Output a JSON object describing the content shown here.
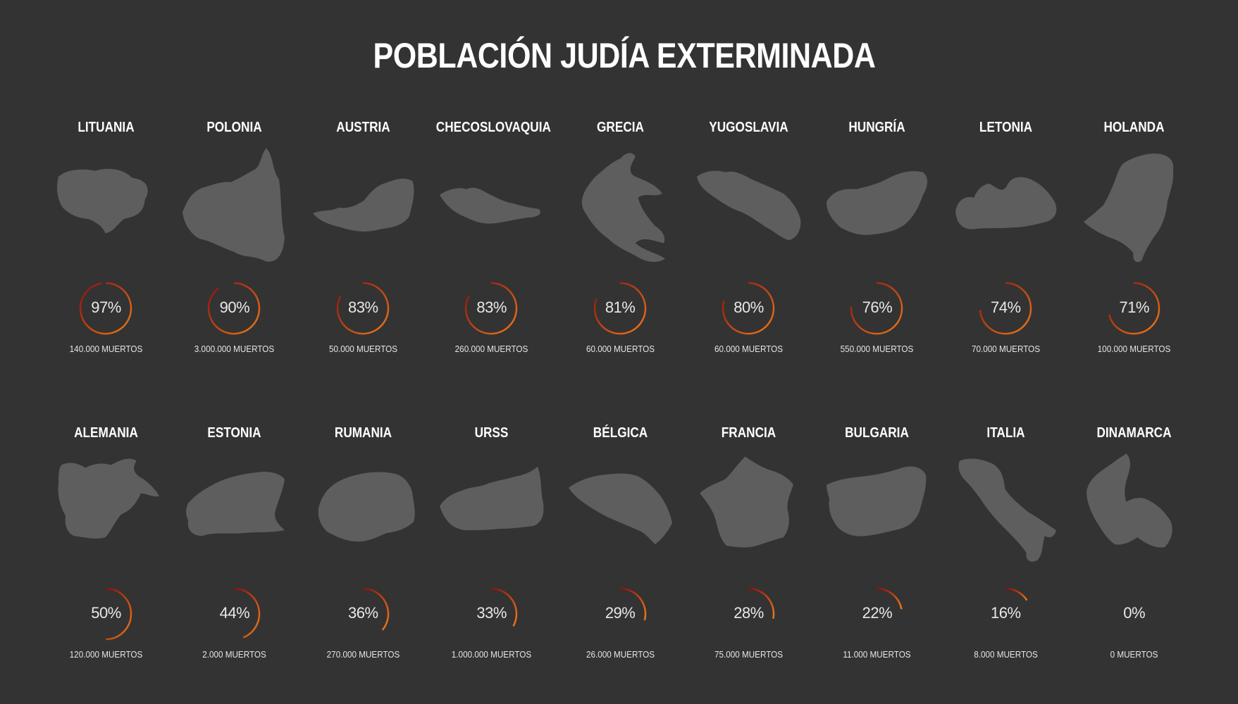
{
  "title": "POBLACIÓN JUDÍA EXTERMINADA",
  "colors": {
    "background": "#333333",
    "map": "#5e5e5e",
    "ring_start": "#8a0e0e",
    "ring_end": "#f07a18",
    "text": "#ffffff"
  },
  "chart_data": {
    "type": "radial-progress",
    "title": "POBLACIÓN JUDÍA EXTERMINADA",
    "unit": "%",
    "items": [
      {
        "country": "LITUANIA",
        "percent": 97,
        "label": "97%",
        "deaths": "140.000 MUERTOS",
        "map_icon": "lithuania-map-icon"
      },
      {
        "country": "POLONIA",
        "percent": 90,
        "label": "90%",
        "deaths": "3.000.000 MUERTOS",
        "map_icon": "poland-map-icon"
      },
      {
        "country": "AUSTRIA",
        "percent": 83,
        "label": "83%",
        "deaths": "50.000 MUERTOS",
        "map_icon": "austria-map-icon"
      },
      {
        "country": "CHECOSLOVAQUIA",
        "percent": 83,
        "label": "83%",
        "deaths": "260.000 MUERTOS",
        "map_icon": "czechoslovakia-map-icon"
      },
      {
        "country": "GRECIA",
        "percent": 81,
        "label": "81%",
        "deaths": "60.000 MUERTOS",
        "map_icon": "greece-map-icon"
      },
      {
        "country": "YUGOSLAVIA",
        "percent": 80,
        "label": "80%",
        "deaths": "60.000 MUERTOS",
        "map_icon": "yugoslavia-map-icon"
      },
      {
        "country": "HUNGRÍA",
        "percent": 76,
        "label": "76%",
        "deaths": "550.000 MUERTOS",
        "map_icon": "hungary-map-icon"
      },
      {
        "country": "LETONIA",
        "percent": 74,
        "label": "74%",
        "deaths": "70.000 MUERTOS",
        "map_icon": "latvia-map-icon"
      },
      {
        "country": "HOLANDA",
        "percent": 71,
        "label": "71%",
        "deaths": "100.000 MUERTOS",
        "map_icon": "netherlands-map-icon"
      },
      {
        "country": "ALEMANIA",
        "percent": 50,
        "label": "50%",
        "deaths": "120.000 MUERTOS",
        "map_icon": "germany-map-icon"
      },
      {
        "country": "ESTONIA",
        "percent": 44,
        "label": "44%",
        "deaths": "2.000 MUERTOS",
        "map_icon": "estonia-map-icon"
      },
      {
        "country": "RUMANIA",
        "percent": 36,
        "label": "36%",
        "deaths": "270.000 MUERTOS",
        "map_icon": "romania-map-icon"
      },
      {
        "country": "URSS",
        "percent": 33,
        "label": "33%",
        "deaths": "1.000.000 MUERTOS",
        "map_icon": "ussr-map-icon"
      },
      {
        "country": "BÉLGICA",
        "percent": 29,
        "label": "29%",
        "deaths": "26.000 MUERTOS",
        "map_icon": "belgium-map-icon"
      },
      {
        "country": "FRANCIA",
        "percent": 28,
        "label": "28%",
        "deaths": "75.000 MUERTOS",
        "map_icon": "france-map-icon"
      },
      {
        "country": "BULGARIA",
        "percent": 22,
        "label": "22%",
        "deaths": "11.000 MUERTOS",
        "map_icon": "bulgaria-map-icon"
      },
      {
        "country": "ITALIA",
        "percent": 16,
        "label": "16%",
        "deaths": "8.000 MUERTOS",
        "map_icon": "italy-map-icon"
      },
      {
        "country": "DINAMARCA",
        "percent": 0,
        "label": "0%",
        "deaths": "0 MUERTOS",
        "map_icon": "denmark-map-icon"
      }
    ]
  }
}
